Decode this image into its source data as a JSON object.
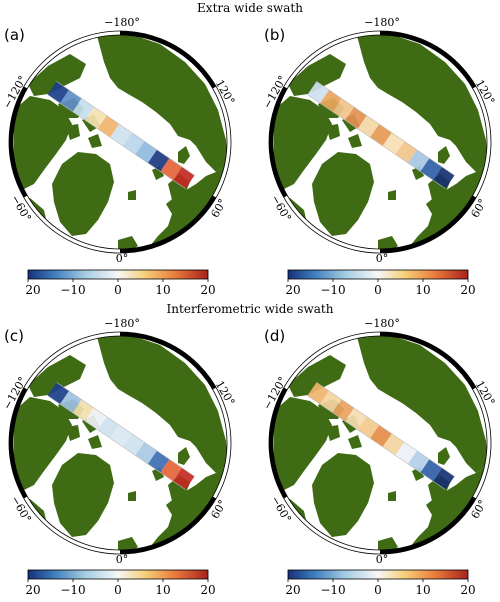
{
  "titles": {
    "top": "Extra wide swath",
    "bottom": "Interferometric wide swath"
  },
  "panels": [
    {
      "label": "(a)",
      "variant": "a"
    },
    {
      "label": "(b)",
      "variant": "b"
    },
    {
      "label": "(c)",
      "variant": "c"
    },
    {
      "label": "(d)",
      "variant": "d"
    }
  ],
  "longitude_labels": {
    "top": "−180°",
    "left": "−120°",
    "right": "120°",
    "lower_left": "−60°",
    "lower_right": "60°",
    "bottom": "0°"
  },
  "colorbar": {
    "ticks": [
      "−20",
      "−10",
      "0",
      "10",
      "20"
    ],
    "range": [
      -20,
      20
    ],
    "colormap": "RdYlBu_r"
  },
  "colors": {
    "land": "#3e6b14",
    "ice": "#ffffff",
    "frame": "#000000"
  }
}
